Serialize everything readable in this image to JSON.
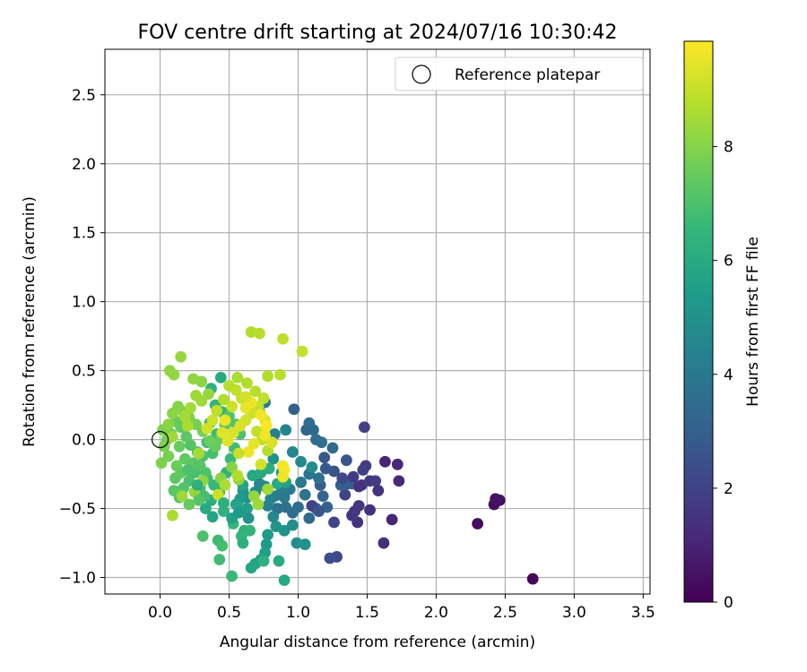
{
  "chart_data": {
    "type": "scatter",
    "title": "FOV centre drift starting at 2024/07/16 10:30:42",
    "xlabel": "Angular distance from reference (arcmin)",
    "ylabel": "Rotation from reference (arcmin)",
    "xlim": [
      -0.4,
      3.55
    ],
    "ylim": [
      -1.12,
      2.83
    ],
    "xticks": [
      0.0,
      0.5,
      1.0,
      1.5,
      2.0,
      2.5,
      3.0,
      3.5
    ],
    "xtick_labels": [
      "0.0",
      "0.5",
      "1.0",
      "1.5",
      "2.0",
      "2.5",
      "3.0",
      "3.5"
    ],
    "yticks": [
      -1.0,
      -0.5,
      0.0,
      0.5,
      1.0,
      1.5,
      2.0,
      2.5
    ],
    "ytick_labels": [
      "−1.0",
      "−0.5",
      "0.0",
      "0.5",
      "1.0",
      "1.5",
      "2.0",
      "2.5"
    ],
    "grid": true,
    "legend": {
      "placement": "upper right",
      "entries": [
        {
          "label": "Reference platepar",
          "marker": "open-circle"
        }
      ]
    },
    "reference_point": {
      "x": 0.0,
      "y": 0.0
    },
    "colorbar": {
      "label": "Hours from first FF file",
      "range": [
        0,
        9.85
      ],
      "ticks": [
        0,
        2,
        4,
        6,
        8
      ],
      "tick_labels": [
        "0",
        "2",
        "4",
        "6",
        "8"
      ],
      "colormap": "viridis"
    },
    "points": [
      [
        2.7,
        -1.01,
        0.2
      ],
      [
        2.3,
        -0.61,
        0.3
      ],
      [
        2.42,
        -0.47,
        0.4
      ],
      [
        2.46,
        -0.44,
        0.4
      ],
      [
        2.43,
        -0.43,
        0.5
      ],
      [
        1.63,
        -0.16,
        1.0
      ],
      [
        1.72,
        -0.18,
        1.1
      ],
      [
        1.73,
        -0.3,
        1.2
      ],
      [
        1.62,
        -0.75,
        1.3
      ],
      [
        1.52,
        -0.51,
        1.4
      ],
      [
        1.41,
        -0.52,
        1.5
      ],
      [
        1.43,
        -0.6,
        1.5
      ],
      [
        1.39,
        -0.55,
        1.6
      ],
      [
        1.44,
        -0.48,
        1.6
      ],
      [
        1.46,
        -0.33,
        1.7
      ],
      [
        1.52,
        -0.3,
        1.7
      ],
      [
        1.56,
        -0.3,
        1.8
      ],
      [
        1.49,
        -0.19,
        1.8
      ],
      [
        1.47,
        -0.22,
        1.9
      ],
      [
        1.48,
        0.09,
        1.9
      ],
      [
        1.68,
        -0.58,
        1.0
      ],
      [
        1.58,
        -0.37,
        1.5
      ],
      [
        1.34,
        -0.4,
        2.0
      ],
      [
        1.26,
        -0.6,
        2.1
      ],
      [
        1.28,
        -0.85,
        2.2
      ],
      [
        1.23,
        -0.86,
        2.3
      ],
      [
        1.36,
        -0.32,
        2.4
      ],
      [
        1.26,
        -0.23,
        2.5
      ],
      [
        1.35,
        -0.15,
        2.6
      ],
      [
        1.2,
        -0.21,
        2.8
      ],
      [
        1.16,
        -0.33,
        2.9
      ],
      [
        1.31,
        -0.33,
        3.0
      ],
      [
        1.39,
        -0.32,
        3.0
      ],
      [
        1.21,
        -0.49,
        3.1
      ],
      [
        1.18,
        -0.41,
        3.2
      ],
      [
        1.13,
        -0.5,
        3.3
      ],
      [
        1.08,
        -0.57,
        3.4
      ],
      [
        1.0,
        -0.49,
        3.5
      ],
      [
        0.96,
        -0.53,
        3.5
      ],
      [
        0.91,
        -0.49,
        3.6
      ],
      [
        0.85,
        -0.5,
        3.7
      ],
      [
        0.97,
        0.22,
        3.0
      ],
      [
        1.06,
        0.07,
        3.2
      ],
      [
        1.11,
        0.07,
        3.3
      ],
      [
        1.08,
        0.12,
        3.5
      ],
      [
        1.13,
        0.0,
        3.5
      ],
      [
        1.17,
        -0.02,
        3.6
      ],
      [
        1.25,
        -0.06,
        3.4
      ],
      [
        1.15,
        -0.28,
        3.7
      ],
      [
        1.08,
        -0.25,
        3.8
      ],
      [
        1.02,
        -0.31,
        3.9
      ],
      [
        0.94,
        -0.36,
        4.0
      ],
      [
        0.88,
        -0.38,
        4.1
      ],
      [
        0.83,
        -0.41,
        4.2
      ],
      [
        0.78,
        -0.48,
        4.3
      ],
      [
        0.8,
        -0.43,
        4.4
      ],
      [
        0.76,
        -0.34,
        4.5
      ],
      [
        0.72,
        -0.32,
        4.6
      ],
      [
        0.69,
        -0.38,
        4.7
      ],
      [
        0.76,
        0.27,
        4.2
      ],
      [
        0.72,
        0.2,
        4.4
      ],
      [
        0.83,
        0.04,
        4.3
      ],
      [
        0.91,
        0.07,
        4.5
      ],
      [
        0.96,
        -0.09,
        4.6
      ],
      [
        1.02,
        -0.16,
        4.7
      ],
      [
        1.1,
        -0.2,
        4.8
      ],
      [
        0.99,
        -0.75,
        4.9
      ],
      [
        1.05,
        -0.76,
        5.0
      ],
      [
        0.9,
        -0.66,
        5.1
      ],
      [
        0.84,
        -0.63,
        5.2
      ],
      [
        0.78,
        -0.69,
        5.3
      ],
      [
        0.77,
        -0.76,
        5.4
      ],
      [
        0.76,
        -0.82,
        5.5
      ],
      [
        0.73,
        -0.87,
        5.6
      ],
      [
        0.69,
        -0.9,
        5.7
      ],
      [
        0.66,
        -0.93,
        5.8
      ],
      [
        0.9,
        -1.02,
        5.9
      ],
      [
        0.63,
        -0.42,
        5.0
      ],
      [
        0.6,
        -0.37,
        5.2
      ],
      [
        0.58,
        -0.43,
        5.4
      ],
      [
        0.63,
        -0.5,
        5.5
      ],
      [
        0.58,
        -0.51,
        5.6
      ],
      [
        0.55,
        -0.47,
        5.7
      ],
      [
        0.6,
        -0.33,
        5.8
      ],
      [
        0.67,
        -0.26,
        5.9
      ],
      [
        0.73,
        -0.24,
        6.0
      ],
      [
        0.82,
        -0.14,
        5.1
      ],
      [
        0.88,
        -0.24,
        5.3
      ],
      [
        0.91,
        -0.31,
        5.6
      ],
      [
        0.85,
        -0.32,
        5.9
      ],
      [
        0.79,
        -0.21,
        6.1
      ],
      [
        0.86,
        -0.88,
        6.0
      ],
      [
        0.75,
        -0.88,
        6.2
      ],
      [
        0.61,
        -0.66,
        6.3
      ],
      [
        0.59,
        -0.7,
        6.4
      ],
      [
        0.53,
        -0.61,
        6.5
      ],
      [
        0.52,
        -0.99,
        6.6
      ],
      [
        0.42,
        -0.73,
        6.7
      ],
      [
        0.43,
        -0.87,
        6.8
      ],
      [
        0.45,
        -0.77,
        6.9
      ],
      [
        0.31,
        -0.7,
        7.0
      ],
      [
        0.37,
        -0.44,
        6.1
      ],
      [
        0.46,
        -0.52,
        6.3
      ],
      [
        0.43,
        -0.38,
        6.5
      ],
      [
        0.39,
        -0.33,
        6.6
      ],
      [
        0.34,
        -0.28,
        6.7
      ],
      [
        0.29,
        -0.35,
        6.8
      ],
      [
        0.25,
        -0.24,
        6.9
      ],
      [
        0.21,
        -0.3,
        7.0
      ],
      [
        0.17,
        -0.35,
        7.1
      ],
      [
        0.14,
        -0.42,
        7.2
      ],
      [
        0.1,
        -0.37,
        7.3
      ],
      [
        0.11,
        -0.28,
        7.3
      ],
      [
        0.44,
        0.45,
        6.0
      ],
      [
        0.37,
        0.37,
        6.2
      ],
      [
        0.4,
        0.25,
        6.4
      ],
      [
        0.45,
        0.2,
        6.5
      ],
      [
        0.36,
        0.12,
        6.6
      ],
      [
        0.41,
        0.04,
        6.7
      ],
      [
        0.34,
        -0.02,
        6.8
      ],
      [
        0.38,
        -0.1,
        6.9
      ],
      [
        0.31,
        -0.12,
        7.0
      ],
      [
        0.27,
        -0.09,
        7.1
      ],
      [
        0.22,
        -0.04,
        7.2
      ],
      [
        0.19,
        0.02,
        7.3
      ],
      [
        0.15,
        0.09,
        7.4
      ],
      [
        0.12,
        0.13,
        7.5
      ],
      [
        0.08,
        0.04,
        7.6
      ],
      [
        0.05,
        0.0,
        7.7
      ],
      [
        0.03,
        -0.05,
        7.8
      ],
      [
        0.01,
        -0.17,
        7.9
      ],
      [
        0.06,
        -0.12,
        7.8
      ],
      [
        0.02,
        0.07,
        7.9
      ],
      [
        0.14,
        -0.05,
        7.5
      ],
      [
        0.18,
        -0.14,
        7.4
      ],
      [
        0.24,
        -0.17,
        7.3
      ],
      [
        0.29,
        -0.19,
        7.2
      ],
      [
        0.33,
        -0.24,
        7.1
      ],
      [
        0.48,
        -0.24,
        6.4
      ],
      [
        0.51,
        -0.14,
        6.6
      ],
      [
        0.54,
        -0.06,
        6.8
      ],
      [
        0.58,
        0.04,
        7.0
      ],
      [
        0.55,
        0.11,
        7.1
      ],
      [
        0.5,
        0.17,
        7.2
      ],
      [
        0.47,
        0.11,
        7.3
      ],
      [
        0.44,
        0.01,
        7.4
      ],
      [
        0.4,
        -0.05,
        7.5
      ],
      [
        0.36,
        -0.01,
        7.6
      ],
      [
        0.31,
        0.06,
        7.7
      ],
      [
        0.26,
        0.11,
        7.8
      ],
      [
        0.21,
        0.16,
        7.9
      ],
      [
        0.17,
        0.2,
        8.0
      ],
      [
        0.13,
        0.24,
        8.0
      ],
      [
        0.09,
        0.19,
        8.1
      ],
      [
        0.06,
        0.11,
        8.1
      ],
      [
        0.07,
        0.5,
        8.2
      ],
      [
        0.1,
        0.47,
        8.2
      ],
      [
        0.15,
        0.6,
        8.3
      ],
      [
        0.24,
        0.44,
        8.2
      ],
      [
        0.3,
        0.42,
        8.1
      ],
      [
        0.35,
        0.33,
        8.3
      ],
      [
        0.3,
        0.28,
        8.4
      ],
      [
        0.26,
        0.32,
        8.4
      ],
      [
        0.22,
        0.23,
        8.5
      ],
      [
        0.18,
        0.17,
        8.5
      ],
      [
        0.09,
        -0.55,
        8.6
      ],
      [
        0.16,
        -0.41,
        8.4
      ],
      [
        0.25,
        -0.38,
        8.3
      ],
      [
        0.31,
        -0.3,
        8.2
      ],
      [
        0.44,
        -0.28,
        8.1
      ],
      [
        0.52,
        -0.2,
        8.0
      ],
      [
        0.57,
        -0.29,
        8.2
      ],
      [
        0.68,
        -0.41,
        8.3
      ],
      [
        0.71,
        -0.47,
        8.4
      ],
      [
        0.78,
        -0.36,
        8.5
      ],
      [
        0.66,
        0.78,
        8.7
      ],
      [
        0.72,
        0.77,
        8.8
      ],
      [
        0.89,
        0.73,
        8.9
      ],
      [
        1.03,
        0.64,
        9.0
      ],
      [
        0.87,
        0.47,
        8.8
      ],
      [
        0.78,
        0.46,
        8.7
      ],
      [
        0.56,
        0.45,
        8.6
      ],
      [
        0.63,
        0.41,
        8.7
      ],
      [
        0.69,
        0.35,
        8.8
      ],
      [
        0.75,
        0.3,
        8.9
      ],
      [
        0.71,
        0.24,
        9.0
      ],
      [
        0.66,
        0.19,
        9.1
      ],
      [
        0.62,
        0.14,
        9.2
      ],
      [
        0.58,
        0.1,
        9.3
      ],
      [
        0.53,
        0.05,
        9.3
      ],
      [
        0.49,
        -0.01,
        9.4
      ],
      [
        0.45,
        0.05,
        9.4
      ],
      [
        0.52,
        0.24,
        9.1
      ],
      [
        0.59,
        0.3,
        9.0
      ],
      [
        0.55,
        0.36,
        8.9
      ],
      [
        0.5,
        0.39,
        8.8
      ],
      [
        0.46,
        0.29,
        8.7
      ],
      [
        0.41,
        0.21,
        8.9
      ],
      [
        0.38,
        0.14,
        9.1
      ],
      [
        0.34,
        0.08,
        9.2
      ],
      [
        0.7,
        0.06,
        9.0
      ],
      [
        0.74,
        0.0,
        8.9
      ],
      [
        0.78,
        -0.08,
        8.8
      ],
      [
        0.81,
        -0.02,
        9.3
      ],
      [
        0.76,
        0.14,
        9.4
      ],
      [
        0.68,
        -0.03,
        9.5
      ],
      [
        0.64,
        -0.09,
        9.6
      ],
      [
        0.62,
        0.23,
        9.5
      ],
      [
        0.66,
        0.27,
        9.6
      ],
      [
        0.73,
        0.18,
        9.7
      ],
      [
        0.77,
        0.1,
        9.8
      ],
      [
        0.89,
        -0.19,
        9.7
      ],
      [
        0.9,
        -0.22,
        9.8
      ],
      [
        0.89,
        -0.27,
        9.6
      ],
      [
        0.73,
        -0.18,
        9.2
      ],
      [
        0.76,
        0.03,
        9.7
      ],
      [
        0.42,
        -0.4,
        9.1
      ],
      [
        0.47,
        -0.33,
        8.6
      ],
      [
        0.56,
        -0.26,
        8.7
      ],
      [
        0.47,
        0.14,
        9.6
      ],
      [
        0.62,
        0.31,
        9.2
      ],
      [
        0.57,
        -0.1,
        9.0
      ],
      [
        0.2,
        0.1,
        8.6
      ],
      [
        0.28,
        -0.1,
        8.5
      ],
      [
        0.09,
        0.02,
        8.4
      ],
      [
        0.12,
        -0.19,
        7.6
      ],
      [
        0.15,
        -0.24,
        7.4
      ],
      [
        0.2,
        -0.22,
        7.0
      ],
      [
        0.27,
        -0.33,
        6.2
      ],
      [
        0.33,
        -0.5,
        6.0
      ],
      [
        0.38,
        -0.56,
        5.8
      ],
      [
        0.52,
        -0.57,
        5.6
      ],
      [
        0.57,
        -0.53,
        5.3
      ],
      [
        0.64,
        -0.57,
        5.0
      ],
      [
        0.65,
        -0.66,
        6.4
      ],
      [
        0.6,
        -0.75,
        6.2
      ],
      [
        0.46,
        -0.46,
        6.2
      ],
      [
        0.32,
        -0.41,
        6.9
      ],
      [
        0.28,
        -0.44,
        7.2
      ],
      [
        0.21,
        -0.47,
        7.5
      ],
      [
        1.1,
        -0.48,
        2.0
      ],
      [
        1.15,
        -0.52,
        2.6
      ],
      [
        0.96,
        -0.62,
        4.8
      ],
      [
        0.82,
        -0.56,
        4.6
      ],
      [
        0.9,
        -0.42,
        4.0
      ],
      [
        1.05,
        -0.4,
        3.7
      ],
      [
        1.19,
        -0.13,
        2.7
      ],
      [
        1.32,
        -0.28,
        2.2
      ],
      [
        1.44,
        -0.34,
        1.4
      ],
      [
        1.4,
        -0.27,
        1.8
      ]
    ]
  }
}
